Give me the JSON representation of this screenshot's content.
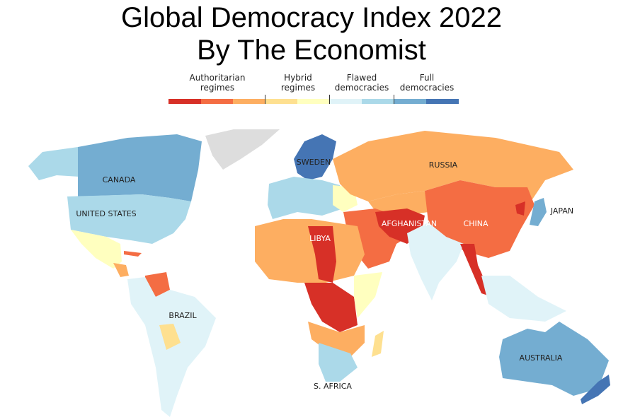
{
  "title": [
    "Global Democracy Index 2022",
    "By The Economist"
  ],
  "legend": {
    "categories": [
      "Authoritarian regimes",
      "Hybrid regimes",
      "Flawed democracies",
      "Full democracies"
    ],
    "colors": [
      "#d73027",
      "#f46d43",
      "#fdae61",
      "#fee090",
      "#ffffbf",
      "#e0f3f8",
      "#abd9e9",
      "#74add1",
      "#4575b4"
    ]
  },
  "labels": {
    "canada": "CANADA",
    "usa": "UNITED STATES",
    "russia": "RUSSIA",
    "sweden": "SWEDEN",
    "japan": "JAPAN",
    "afghanistan": "AFGHANISTAN",
    "china": "CHINA",
    "libya": "LIBYA",
    "brazil": "BRAZIL",
    "australia": "AUSTRALIA",
    "south_africa": "S. AFRICA"
  },
  "no_data_color": "#dddddd"
}
